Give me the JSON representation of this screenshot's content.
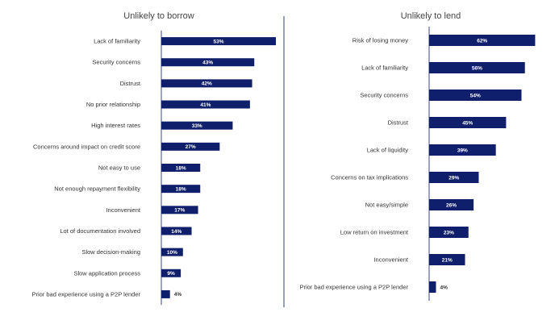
{
  "colors": {
    "bar": "#0f1f6b",
    "axis": "#3a4a8a",
    "divider": "#2b3f8a"
  },
  "chart_data": [
    {
      "type": "bar",
      "orientation": "horizontal",
      "title": "Unlikely to borrow",
      "categories": [
        "Lack of familiarity",
        "Security concerns",
        "Distrust",
        "No prior relationship",
        "High interest rates",
        "Concerns around impact on credit score",
        "Not easy to use",
        "Not enough repayment flexibility",
        "Inconvenient",
        "Lot of documentation involved",
        "Slow decision-making",
        "Slow application process",
        "Prior bad experience using a P2P lender"
      ],
      "values": [
        53,
        43,
        42,
        41,
        33,
        27,
        18,
        18,
        17,
        14,
        10,
        9,
        4
      ],
      "labels": [
        "53%",
        "43%",
        "42%",
        "41%",
        "33%",
        "27%",
        "18%",
        "18%",
        "17%",
        "14%",
        "10%",
        "9%",
        "4%"
      ],
      "unit": "%",
      "xlim": [
        0,
        100
      ],
      "grid": false,
      "legend": "none"
    },
    {
      "type": "bar",
      "orientation": "horizontal",
      "title": "Unlikely to lend",
      "categories": [
        "Risk of losing money",
        "Lack of familiarity",
        "Security concerns",
        "Distrust",
        "Lack of liquidity",
        "Concerns on tax implications",
        "Not easy/simple",
        "Low return on investment",
        "Inconvenient",
        "Prior bad experience using a P2P lender"
      ],
      "values": [
        62,
        56,
        54,
        45,
        39,
        29,
        26,
        23,
        21,
        4
      ],
      "labels": [
        "62%",
        "56%",
        "54%",
        "45%",
        "39%",
        "29%",
        "26%",
        "23%",
        "21%",
        "4%"
      ],
      "unit": "%",
      "xlim": [
        0,
        100
      ],
      "grid": false,
      "legend": "none"
    }
  ]
}
